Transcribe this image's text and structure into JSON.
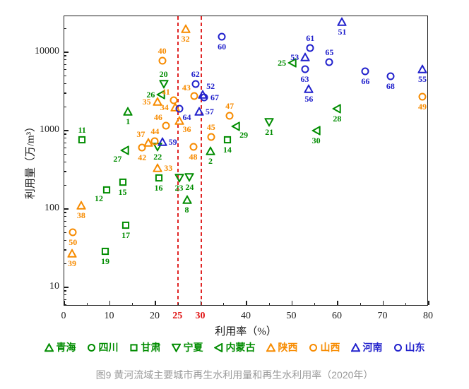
{
  "figure": {
    "caption": "图9 黄河流域主要城市再生水利用量和再生水利用率（2020年）"
  },
  "chart_data": {
    "type": "scatter",
    "title": "",
    "xlabel": "利用率（%）",
    "ylabel": "利用量（万/m³）",
    "x_axis": {
      "min": 0,
      "max": 80,
      "major_ticks": [
        0,
        10,
        20,
        30,
        40,
        50,
        60,
        70,
        80
      ],
      "minor_ticks": [
        5,
        15,
        25,
        35,
        45,
        55,
        65,
        75
      ],
      "black_labels": [
        0,
        10,
        20,
        40,
        50,
        60,
        70,
        80
      ],
      "red_labels": [
        25,
        30
      ]
    },
    "y_axis": {
      "scale": "log",
      "min": 5.7,
      "max": 28800,
      "major_ticks": [
        10,
        100,
        1000,
        10000
      ],
      "minor_ticks": [
        6,
        7,
        8,
        9,
        20,
        30,
        40,
        50,
        60,
        70,
        80,
        90,
        200,
        300,
        400,
        500,
        600,
        700,
        800,
        900,
        2000,
        3000,
        4000,
        5000,
        6000,
        7000,
        8000,
        9000,
        20000
      ]
    },
    "reference_lines_x": [
      25,
      30
    ],
    "grid": false,
    "legend_position": "bottom",
    "colors": {
      "green": "#008c00",
      "orange": "#f78b00",
      "blue": "#2121cc",
      "red": "#e02525",
      "axis": "#1c1c1c",
      "caption_gray": "#9a9a9a"
    },
    "series": [
      {
        "name": "青海",
        "marker": "triangle-up",
        "color": "green",
        "points": [
          {
            "id": "1",
            "x": 14.0,
            "y": 1750,
            "lp": "b"
          },
          {
            "id": "2",
            "x": 32.1,
            "y": 550,
            "lp": "b"
          },
          {
            "id": "8",
            "x": 26.9,
            "y": 130,
            "lp": "b"
          }
        ]
      },
      {
        "name": "四川",
        "marker": "circle",
        "color": "green",
        "points": []
      },
      {
        "name": "甘肃",
        "marker": "square",
        "color": "green",
        "points": [
          {
            "id": "11",
            "x": 3.9,
            "y": 760,
            "lp": "a"
          },
          {
            "id": "12",
            "x": 9.3,
            "y": 175,
            "lp": "bl"
          },
          {
            "id": "14",
            "x": 35.8,
            "y": 760,
            "lp": "b"
          },
          {
            "id": "15",
            "x": 12.8,
            "y": 220,
            "lp": "b"
          },
          {
            "id": "16",
            "x": 20.7,
            "y": 250,
            "lp": "b"
          },
          {
            "id": "17",
            "x": 13.5,
            "y": 62,
            "lp": "b"
          },
          {
            "id": "19",
            "x": 9.0,
            "y": 29,
            "lp": "b"
          }
        ]
      },
      {
        "name": "宁夏",
        "marker": "triangle-down",
        "color": "green",
        "points": [
          {
            "id": "20",
            "x": 21.8,
            "y": 3900,
            "lp": "a"
          },
          {
            "id": "21",
            "x": 45.0,
            "y": 1280,
            "lp": "b"
          },
          {
            "id": "22",
            "x": 20.5,
            "y": 620,
            "lp": "b"
          },
          {
            "id": "23",
            "x": 25.2,
            "y": 250,
            "lp": "b"
          },
          {
            "id": "24",
            "x": 27.5,
            "y": 255,
            "lp": "b"
          }
        ]
      },
      {
        "name": "内蒙古",
        "marker": "triangle-left",
        "color": "green",
        "points": [
          {
            "id": "25",
            "x": 50.1,
            "y": 7300,
            "lp": "l"
          },
          {
            "id": "26",
            "x": 21.3,
            "y": 2900,
            "lp": "l"
          },
          {
            "id": "27",
            "x": 13.4,
            "y": 560,
            "lp": "bl"
          },
          {
            "id": "28",
            "x": 59.9,
            "y": 1900,
            "lp": "b"
          },
          {
            "id": "29",
            "x": 37.7,
            "y": 1130,
            "lp": "br"
          },
          {
            "id": "30",
            "x": 55.3,
            "y": 1000,
            "lp": "b"
          }
        ]
      },
      {
        "name": "陕西",
        "marker": "triangle-up",
        "color": "orange",
        "points": [
          {
            "id": "32",
            "x": 26.6,
            "y": 20000,
            "lp": "b"
          },
          {
            "id": "33",
            "x": 20.5,
            "y": 330,
            "lp": "r"
          },
          {
            "id": "34",
            "x": 24.3,
            "y": 2000,
            "lp": "l"
          },
          {
            "id": "35",
            "x": 20.4,
            "y": 2340,
            "lp": "l"
          },
          {
            "id": "36",
            "x": 25.2,
            "y": 1340,
            "lp": "br"
          },
          {
            "id": "37",
            "x": 18.5,
            "y": 700,
            "lp": "al"
          },
          {
            "id": "38",
            "x": 3.7,
            "y": 110,
            "lp": "b"
          },
          {
            "id": "39",
            "x": 1.7,
            "y": 27,
            "lp": "b"
          }
        ]
      },
      {
        "name": "山西",
        "marker": "circle",
        "color": "orange",
        "points": [
          {
            "id": "40",
            "x": 21.5,
            "y": 7800,
            "lp": "a"
          },
          {
            "id": "41",
            "x": 24.0,
            "y": 2440,
            "lp": "al"
          },
          {
            "id": "42",
            "x": 17.1,
            "y": 610,
            "lp": "b"
          },
          {
            "id": "43",
            "x": 28.5,
            "y": 2760,
            "lp": "al"
          },
          {
            "id": "44",
            "x": 19.9,
            "y": 730,
            "lp": "a"
          },
          {
            "id": "45",
            "x": 32.2,
            "y": 830,
            "lp": "a"
          },
          {
            "id": "46",
            "x": 22.3,
            "y": 1160,
            "lp": "al"
          },
          {
            "id": "47",
            "x": 36.3,
            "y": 1550,
            "lp": "a"
          },
          {
            "id": "48",
            "x": 28.3,
            "y": 620,
            "lp": "b"
          },
          {
            "id": "49",
            "x": 78.6,
            "y": 2700,
            "lp": "b"
          },
          {
            "id": "50",
            "x": 1.9,
            "y": 50,
            "lp": "b"
          }
        ]
      },
      {
        "name": "河南",
        "marker": "triangle-up",
        "color": "blue",
        "points": [
          {
            "id": "51",
            "x": 61.0,
            "y": 24400,
            "lp": "b"
          },
          {
            "id": "52",
            "x": 30.4,
            "y": 2900,
            "lp": "ar"
          },
          {
            "id": "53",
            "x": 52.9,
            "y": 8650,
            "lp": "l"
          },
          {
            "id": "55",
            "x": 78.6,
            "y": 6100,
            "lp": "b"
          },
          {
            "id": "56",
            "x": 53.7,
            "y": 3400,
            "lp": "b"
          },
          {
            "id": "57",
            "x": 29.6,
            "y": 1750,
            "lp": "r"
          },
          {
            "id": "59",
            "x": 21.5,
            "y": 720,
            "lp": "r"
          }
        ]
      },
      {
        "name": "山东",
        "marker": "circle",
        "color": "blue",
        "points": [
          {
            "id": "60",
            "x": 34.6,
            "y": 15800,
            "lp": "b"
          },
          {
            "id": "61",
            "x": 54.0,
            "y": 11300,
            "lp": "a"
          },
          {
            "id": "62",
            "x": 28.8,
            "y": 3900,
            "lp": "a"
          },
          {
            "id": "63",
            "x": 52.8,
            "y": 6100,
            "lp": "b"
          },
          {
            "id": "64",
            "x": 25.2,
            "y": 1900,
            "lp": "br"
          },
          {
            "id": "65",
            "x": 58.2,
            "y": 7500,
            "lp": "a"
          },
          {
            "id": "66",
            "x": 66.1,
            "y": 5700,
            "lp": "b"
          },
          {
            "id": "67",
            "x": 30.7,
            "y": 2650,
            "lp": "r"
          },
          {
            "id": "68",
            "x": 71.6,
            "y": 4900,
            "lp": "b"
          }
        ]
      }
    ]
  }
}
